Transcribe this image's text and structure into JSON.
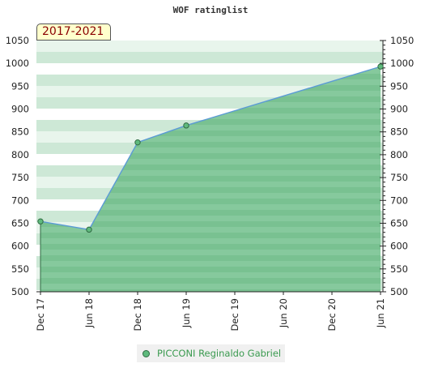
{
  "chart_data": {
    "type": "area",
    "title": "WOF ratinglist",
    "period_label": "2017-2021",
    "x_tick_labels": [
      "Dec 17",
      "Jun 18",
      "Dec 18",
      "Jun 19",
      "Dec 19",
      "Jun 20",
      "Dec 20",
      "Jun 21"
    ],
    "ylim": [
      500,
      1050
    ],
    "y_ticks": [
      500,
      550,
      600,
      650,
      700,
      750,
      800,
      850,
      900,
      950,
      1000,
      1050
    ],
    "grid": false,
    "legend_position": "bottom",
    "series": [
      {
        "name": "PICCONI Reginaldo Gabriel",
        "points": [
          {
            "x": "Dec 17",
            "y": 654
          },
          {
            "x": "Jun 18",
            "y": 636
          },
          {
            "x": "Dec 18",
            "y": 827
          },
          {
            "x": "Jun 19",
            "y": 864
          },
          {
            "x": "Jun 21",
            "y": 993
          }
        ]
      }
    ],
    "colors": {
      "line": "#5b9bd5",
      "fill": "#7cc495",
      "marker": "#5fba7d",
      "marker_stroke": "#2f6b42",
      "band_light": "#e8f5ec",
      "band_dark": "#cde8d6",
      "legend_text": "#3a9a4f",
      "badge_text": "#8b0000",
      "badge_bg": "#ffffcc"
    }
  }
}
